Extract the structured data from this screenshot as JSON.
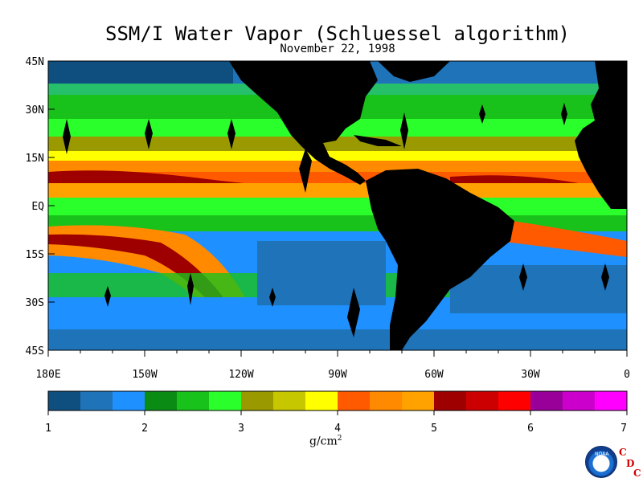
{
  "title": "SSM/I Water Vapor (Schluessel algorithm)",
  "date": "November 22, 1998",
  "lat_labels": [
    "45N",
    "30N",
    "15N",
    "EQ",
    "15S",
    "30S",
    "45S"
  ],
  "lon_labels": [
    "180E",
    "150W",
    "120W",
    "90W",
    "60W",
    "30W",
    "0"
  ],
  "colorbar": {
    "colors": [
      "#0f4f7f",
      "#1f73b8",
      "#1e90ff",
      "#0a8c14",
      "#18c21a",
      "#2bff2b",
      "#9a9a00",
      "#c7c700",
      "#ffff00",
      "#ff5a00",
      "#ff8a00",
      "#ffa200",
      "#9e0000",
      "#cc0000",
      "#ff0000",
      "#990099",
      "#cc00cc",
      "#ff00ff"
    ],
    "tick_labels": [
      "1",
      "2",
      "3",
      "4",
      "5",
      "6",
      "7"
    ],
    "unit_text": "g/cm",
    "unit_sup": "2"
  },
  "logo": {
    "name": "noaa-logo",
    "text": "NOAA",
    "cdc_letters": [
      "C",
      "D",
      "C"
    ]
  },
  "colors": {
    "land": "#000000",
    "missing": "#000000",
    "frame": "#000000"
  }
}
